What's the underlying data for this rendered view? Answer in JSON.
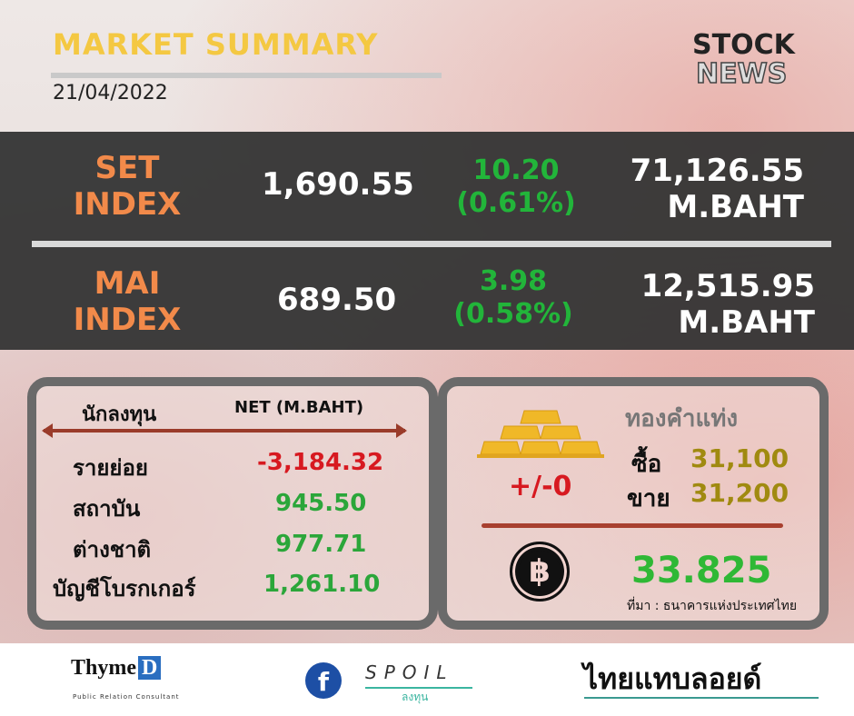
{
  "header": {
    "title": "MARKET SUMMARY",
    "date": "21/04/2022",
    "logo_line1": "STOCK",
    "logo_line2": "NEWS"
  },
  "indices": [
    {
      "label_line1": "SET",
      "label_line2": "INDEX",
      "value": "1,690.55",
      "change": "10.20",
      "change_pct": "(0.61%)",
      "volume": "71,126.55",
      "volume_unit": "M.BAHT"
    },
    {
      "label_line1": "MAI",
      "label_line2": "INDEX",
      "value": "689.50",
      "change": "3.98",
      "change_pct": "(0.58%)",
      "volume": "12,515.95",
      "volume_unit": "M.BAHT"
    }
  ],
  "investors": {
    "header_label": "นักลงทุน",
    "header_net": "NET (M.BAHT)",
    "rows": [
      {
        "label": "รายย่อย",
        "value": "-3,184.32",
        "color": "#d71920"
      },
      {
        "label": "สถาบัน",
        "value": "945.50",
        "color": "#2ba63a"
      },
      {
        "label": "ต่างชาติ",
        "value": "977.71",
        "color": "#2ba63a"
      },
      {
        "label": "บัญชีโบรกเกอร์",
        "value": "1,261.10",
        "color": "#2ba63a"
      }
    ]
  },
  "gold": {
    "title": "ทองคำแท่ง",
    "change": "+/-0",
    "buy_label": "ซื้อ",
    "buy": "31,100",
    "sell_label": "ขาย",
    "sell": "31,200"
  },
  "fx": {
    "icon": "baht-coin-icon",
    "rate": "33.825",
    "source": "ที่มา : ธนาคารแห่งประเทศไทย"
  },
  "footer": {
    "thyme": "Thyme",
    "thyme_d": "D",
    "thyme_sub": "Public Relation Consultant",
    "spoil": "SPOIL",
    "spoil_sub": "ลงทุน",
    "thaiblog": "ไทยแทบลอยด์"
  },
  "colors": {
    "orange": "#f28a4a",
    "green": "#2ba63a",
    "gold": "#a08a10",
    "red": "#d71920",
    "band": "#343434"
  }
}
